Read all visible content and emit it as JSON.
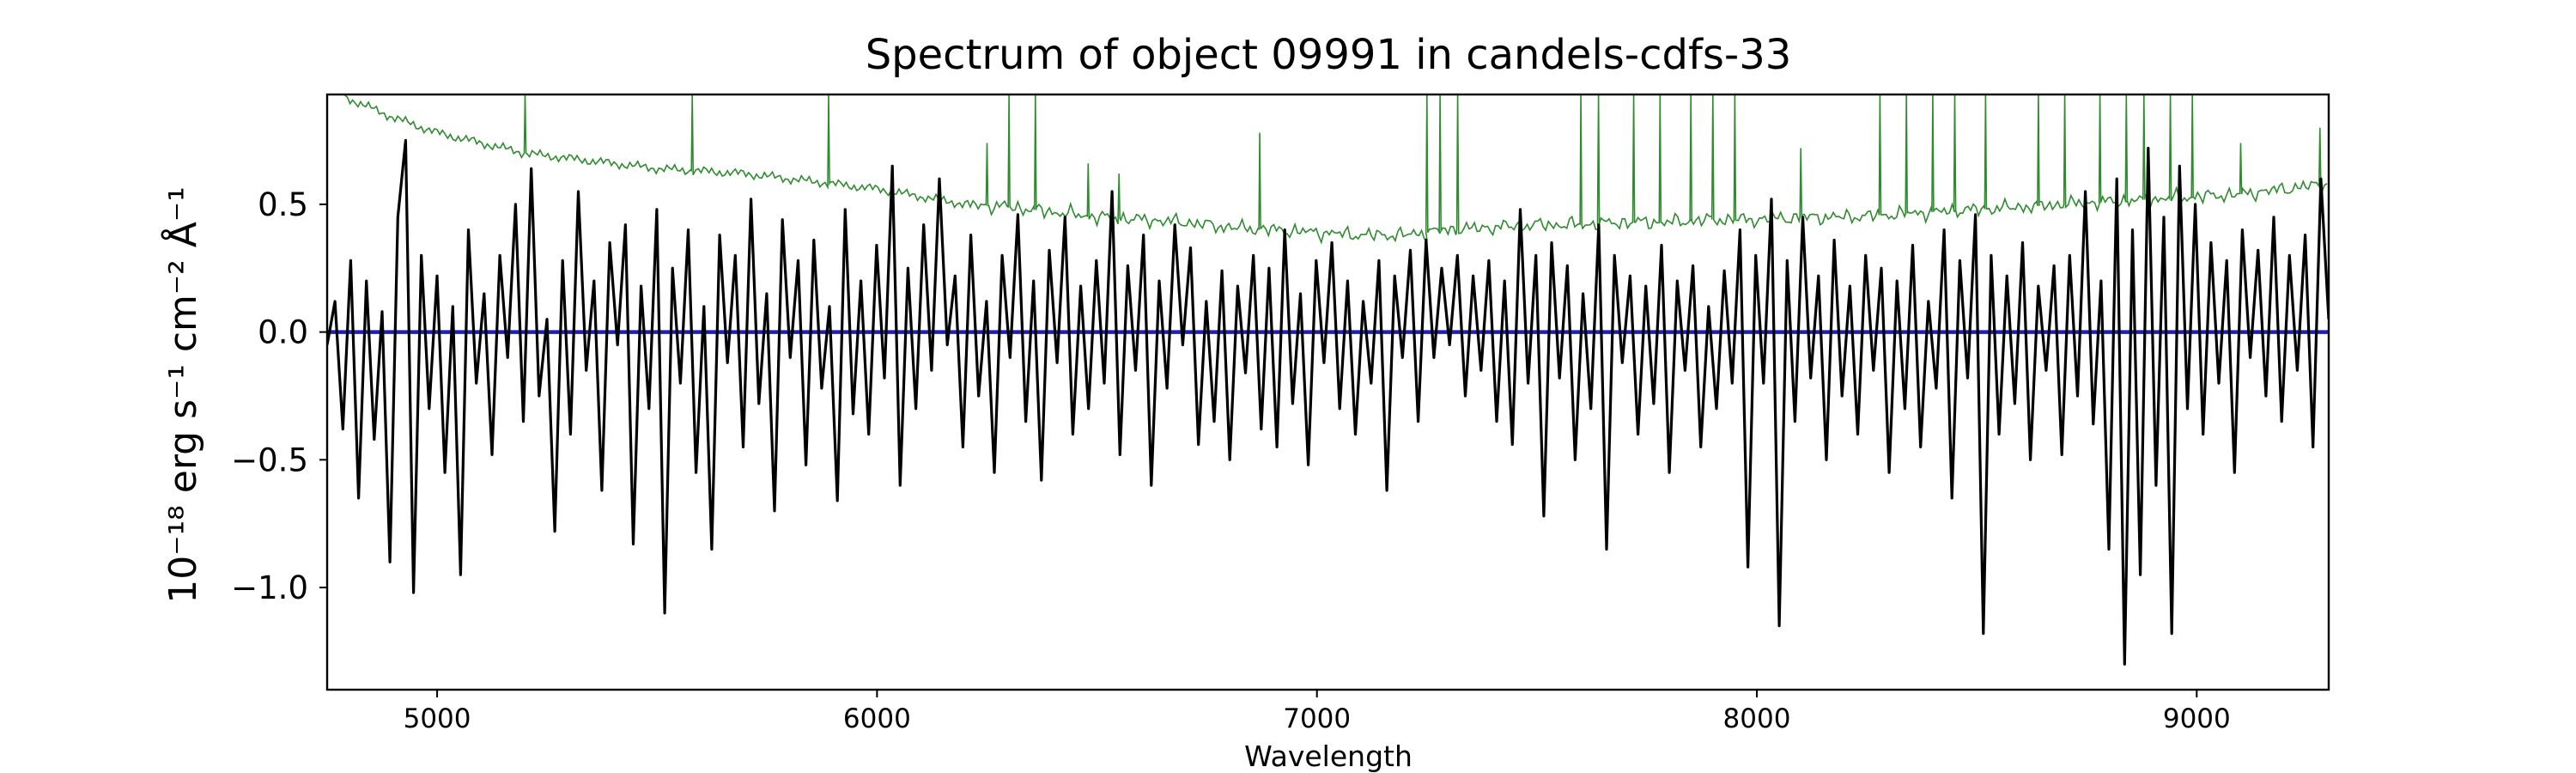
{
  "chart_data": {
    "type": "line",
    "title": "Spectrum of object 09991 in candels-cdfs-33",
    "xlabel": "Wavelength",
    "ylabel": "10⁻¹⁸ erg s⁻¹ cm⁻² Å⁻¹",
    "xlim": [
      4750,
      9300
    ],
    "ylim": [
      -1.4,
      0.93
    ],
    "x_ticks": [
      5000,
      6000,
      7000,
      8000,
      9000
    ],
    "x_tick_labels": [
      "5000",
      "6000",
      "7000",
      "8000",
      "9000"
    ],
    "y_ticks": [
      0.5,
      0.0,
      -0.5,
      -1.0
    ],
    "y_tick_labels": [
      "0.5",
      "0.0",
      "−0.5",
      "−1.0"
    ],
    "grid": false,
    "legend": "none",
    "colors": {
      "flux": "#000000",
      "error": "#2e8b2e",
      "zero": "#1f1fb4",
      "frame": "#000000"
    },
    "series": [
      {
        "id": "error",
        "color": "#2e8b2e",
        "x": [
          4790,
          4900,
          5000,
          5100,
          5200,
          5300,
          5400,
          5500,
          5600,
          5700,
          5800,
          5900,
          6000,
          6100,
          6200,
          6300,
          6400,
          6500,
          6600,
          6700,
          6800,
          6900,
          7000,
          7100,
          7200,
          7300,
          7400,
          7500,
          7600,
          7700,
          7800,
          7900,
          8000,
          8100,
          8200,
          8300,
          8400,
          8500,
          8600,
          8700,
          8800,
          8900,
          9000,
          9100,
          9200,
          9300
        ],
        "values": [
          0.92,
          0.84,
          0.78,
          0.74,
          0.7,
          0.68,
          0.66,
          0.64,
          0.63,
          0.62,
          0.6,
          0.58,
          0.56,
          0.53,
          0.5,
          0.49,
          0.47,
          0.45,
          0.44,
          0.43,
          0.41,
          0.4,
          0.39,
          0.38,
          0.38,
          0.4,
          0.41,
          0.42,
          0.42,
          0.43,
          0.43,
          0.44,
          0.44,
          0.45,
          0.45,
          0.46,
          0.47,
          0.48,
          0.49,
          0.5,
          0.51,
          0.52,
          0.53,
          0.54,
          0.56,
          0.58
        ],
        "spikes": [
          [
            5200,
            0.93
          ],
          [
            5580,
            0.93
          ],
          [
            5890,
            0.93
          ],
          [
            6250,
            0.74
          ],
          [
            6300,
            0.93
          ],
          [
            6360,
            0.93
          ],
          [
            6480,
            0.66
          ],
          [
            6550,
            0.62
          ],
          [
            6870,
            0.78
          ],
          [
            7250,
            0.93
          ],
          [
            7280,
            0.93
          ],
          [
            7320,
            0.93
          ],
          [
            7600,
            0.93
          ],
          [
            7640,
            0.93
          ],
          [
            7720,
            0.93
          ],
          [
            7780,
            0.93
          ],
          [
            7850,
            0.93
          ],
          [
            7900,
            0.93
          ],
          [
            7950,
            0.93
          ],
          [
            8100,
            0.72
          ],
          [
            8280,
            0.93
          ],
          [
            8340,
            0.93
          ],
          [
            8400,
            0.93
          ],
          [
            8450,
            0.93
          ],
          [
            8520,
            0.93
          ],
          [
            8640,
            0.93
          ],
          [
            8700,
            0.93
          ],
          [
            8780,
            0.93
          ],
          [
            8840,
            0.93
          ],
          [
            8880,
            0.93
          ],
          [
            8940,
            0.93
          ],
          [
            8990,
            0.93
          ],
          [
            9100,
            0.74
          ],
          [
            9280,
            0.8
          ]
        ]
      },
      {
        "id": "zero",
        "color": "#1f1fb4",
        "x": [
          4750,
          9300
        ],
        "values": [
          0.0,
          0.0
        ]
      },
      {
        "id": "flux",
        "color": "#000000",
        "x_start": 4750,
        "x_end": 9300,
        "values": [
          -0.05,
          0.12,
          -0.38,
          0.28,
          -0.65,
          0.2,
          -0.42,
          0.08,
          -0.9,
          0.45,
          0.75,
          -1.02,
          0.3,
          -0.3,
          0.22,
          -0.55,
          0.1,
          -0.95,
          0.4,
          -0.2,
          0.15,
          -0.48,
          0.3,
          -0.1,
          0.5,
          -0.35,
          0.64,
          -0.25,
          0.05,
          -0.78,
          0.28,
          -0.4,
          0.55,
          -0.15,
          0.2,
          -0.62,
          0.35,
          -0.05,
          0.42,
          -0.83,
          0.18,
          -0.3,
          0.48,
          -1.1,
          0.25,
          -0.2,
          0.4,
          -0.55,
          0.1,
          -0.85,
          0.38,
          -0.12,
          0.3,
          -0.45,
          0.52,
          -0.28,
          0.15,
          -0.7,
          0.44,
          -0.1,
          0.28,
          -0.52,
          0.36,
          -0.22,
          0.1,
          -0.66,
          0.48,
          -0.32,
          0.2,
          -0.4,
          0.34,
          -0.18,
          0.65,
          -0.6,
          0.25,
          -0.3,
          0.42,
          -0.15,
          0.6,
          -0.05,
          0.22,
          -0.45,
          0.38,
          -0.25,
          0.12,
          -0.55,
          0.3,
          -0.1,
          0.46,
          -0.35,
          0.2,
          -0.58,
          0.32,
          -0.12,
          0.45,
          -0.4,
          0.18,
          -0.3,
          0.28,
          -0.2,
          0.55,
          -0.48,
          0.26,
          -0.15,
          0.38,
          -0.6,
          0.2,
          -0.22,
          0.42,
          -0.05,
          0.33,
          -0.44,
          0.12,
          -0.35,
          0.24,
          -0.5,
          0.18,
          -0.16,
          0.3,
          -0.38,
          0.25,
          -0.45,
          0.4,
          -0.28,
          0.15,
          -0.52,
          0.28,
          -0.12,
          0.35,
          -0.3,
          0.2,
          -0.4,
          0.12,
          -0.2,
          0.28,
          -0.62,
          0.22,
          -0.1,
          0.32,
          -0.35,
          0.36,
          -0.1,
          0.25,
          -0.05,
          0.3,
          -0.25,
          0.22,
          -0.15,
          0.28,
          -0.35,
          0.2,
          -0.44,
          0.48,
          -0.2,
          0.3,
          -0.72,
          0.35,
          -0.18,
          0.26,
          -0.5,
          0.15,
          -0.3,
          0.42,
          -0.85,
          0.3,
          -0.12,
          0.22,
          -0.4,
          0.18,
          -0.28,
          0.34,
          -0.55,
          0.2,
          -0.15,
          0.26,
          -0.45,
          0.1,
          -0.3,
          0.24,
          -0.2,
          0.4,
          -0.92,
          0.3,
          -0.2,
          0.52,
          -1.15,
          0.28,
          -0.35,
          0.45,
          -0.18,
          0.22,
          -0.5,
          0.36,
          -0.25,
          0.18,
          -0.4,
          0.3,
          -0.15,
          0.25,
          -0.55,
          0.2,
          -0.3,
          0.34,
          -0.45,
          0.12,
          -0.22,
          0.4,
          -0.65,
          0.28,
          -0.18,
          0.46,
          -1.18,
          0.3,
          -0.4,
          0.22,
          -0.28,
          0.35,
          -0.5,
          0.18,
          -0.15,
          0.26,
          -0.48,
          0.3,
          -0.25,
          0.55,
          -0.36,
          0.2,
          -0.85,
          0.6,
          -1.3,
          0.4,
          -0.95,
          0.72,
          -0.6,
          0.45,
          -1.18,
          0.65,
          -0.3,
          0.5,
          -0.4,
          0.35,
          -0.2,
          0.28,
          -0.55,
          0.4,
          -0.1,
          0.32,
          -0.25,
          0.45,
          -0.35,
          0.3,
          -0.15,
          0.38,
          -0.45,
          0.6,
          0.05
        ]
      }
    ]
  }
}
